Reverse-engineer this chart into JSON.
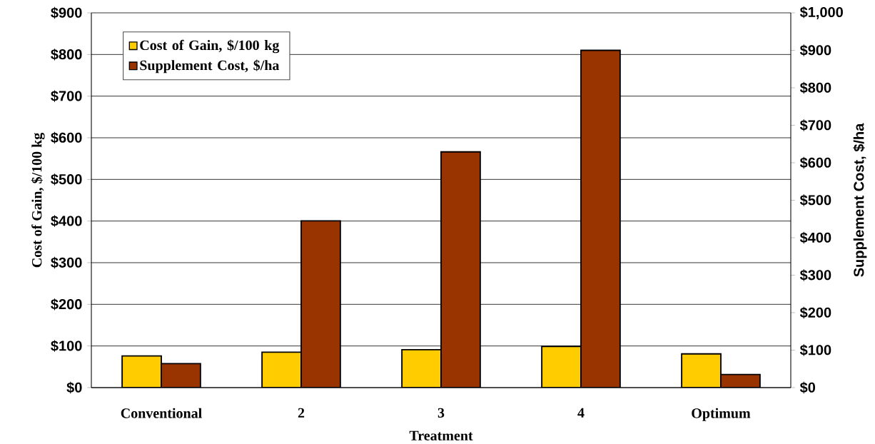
{
  "chart_data": {
    "type": "bar",
    "categories": [
      "Conventional",
      "2",
      "3",
      "4",
      "Optimum"
    ],
    "xlabel": "Treatment",
    "ylabel": "Cost of Gain, $/100 kg",
    "y2label": "Supplement Cost, $/ha",
    "series": [
      {
        "name": "Cost of Gain, $/100 kg",
        "color": "#ffcc00",
        "values": [
          76,
          85,
          91,
          99,
          81
        ]
      },
      {
        "name": "Supplement Cost, $/ha",
        "color": "#993300",
        "axis": "y2",
        "values": [
          64,
          445,
          629,
          900,
          35
        ]
      }
    ],
    "ylim": [
      0,
      900
    ],
    "yticks": [
      {
        "value": 0,
        "label": "$0"
      },
      {
        "value": 100,
        "label": "$100"
      },
      {
        "value": 200,
        "label": "$200"
      },
      {
        "value": 300,
        "label": "$300"
      },
      {
        "value": 400,
        "label": "$400"
      },
      {
        "value": 500,
        "label": "$500"
      },
      {
        "value": 600,
        "label": "$600"
      },
      {
        "value": 700,
        "label": "$700"
      },
      {
        "value": 800,
        "label": "$800"
      },
      {
        "value": 900,
        "label": "$900"
      }
    ],
    "y2lim": [
      0,
      1000
    ],
    "y2ticks": [
      {
        "value": 0,
        "label": "$0"
      },
      {
        "value": 100,
        "label": "$100"
      },
      {
        "value": 200,
        "label": "$200"
      },
      {
        "value": 300,
        "label": "$300"
      },
      {
        "value": 400,
        "label": "$400"
      },
      {
        "value": 500,
        "label": "$500"
      },
      {
        "value": 600,
        "label": "$600"
      },
      {
        "value": 700,
        "label": "$700"
      },
      {
        "value": 800,
        "label": "$800"
      },
      {
        "value": 900,
        "label": "$900"
      },
      {
        "value": 1000,
        "label": "$1,000"
      }
    ],
    "grid": "y",
    "legend": "top left"
  }
}
